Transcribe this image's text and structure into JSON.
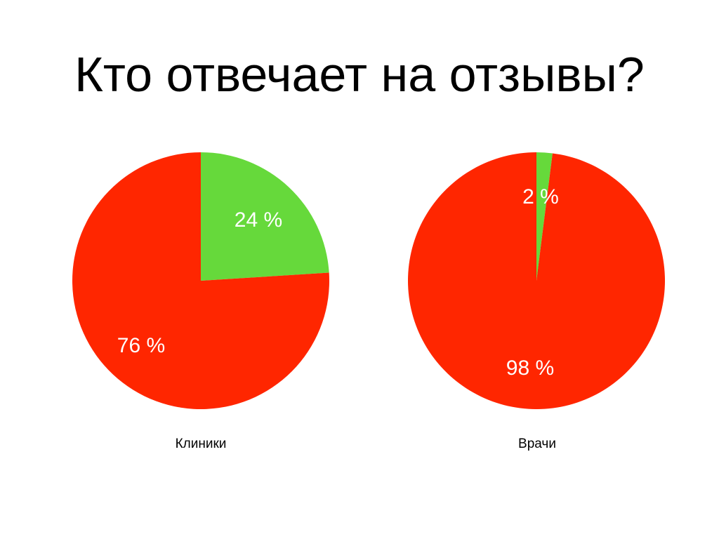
{
  "slide": {
    "title": "Кто отвечает на отзывы?"
  },
  "colors": {
    "answered": "#66d93b",
    "not_answered": "#ff2600",
    "label_text": "#ffffff",
    "background": "#ffffff"
  },
  "pies": [
    {
      "caption": "Клиники",
      "slices": [
        {
          "label": "24 %",
          "value": 24,
          "color": "#66d93b"
        },
        {
          "label": "76 %",
          "value": 76,
          "color": "#ff2600"
        }
      ]
    },
    {
      "caption": "Врачи",
      "slices": [
        {
          "label": "2 %",
          "value": 2,
          "color": "#66d93b"
        },
        {
          "label": "98 %",
          "value": 98,
          "color": "#ff2600"
        }
      ]
    }
  ],
  "chart_data": [
    {
      "type": "pie",
      "title": "Кто отвечает на отзывы?",
      "subtitle": "Клиники",
      "categories": [
        "24 %",
        "76 %"
      ],
      "values": [
        24,
        76
      ],
      "colors": [
        "#66d93b",
        "#ff2600"
      ],
      "start_angle": "12 o'clock, clockwise",
      "legend": "none"
    },
    {
      "type": "pie",
      "title": "Кто отвечает на отзывы?",
      "subtitle": "Врачи",
      "categories": [
        "2 %",
        "98 %"
      ],
      "values": [
        2,
        98
      ],
      "colors": [
        "#66d93b",
        "#ff2600"
      ],
      "start_angle": "12 o'clock, clockwise",
      "legend": "none"
    }
  ]
}
